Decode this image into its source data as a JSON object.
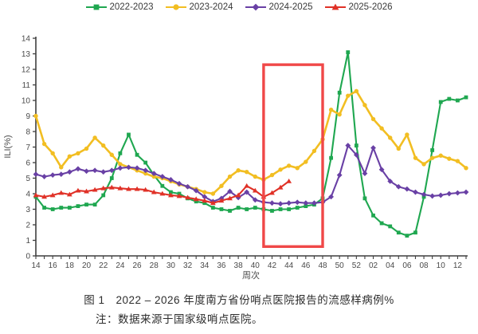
{
  "legend": {
    "items": [
      {
        "label": "2022-2023",
        "marker": "square",
        "color": "#1FA750"
      },
      {
        "label": "2023-2024",
        "marker": "circle",
        "color": "#F2BE22"
      },
      {
        "label": "2024-2025",
        "marker": "diamond",
        "color": "#6940A5"
      },
      {
        "label": "2025-2026",
        "marker": "triangle",
        "color": "#E03127"
      }
    ]
  },
  "chart_data": {
    "type": "line",
    "title": "",
    "xlabel": "周次",
    "ylabel": "ILI(%)",
    "ylim": [
      0,
      14
    ],
    "y_ticks": [
      0,
      1,
      2,
      3,
      4,
      5,
      6,
      7,
      8,
      9,
      10,
      11,
      12,
      13,
      14
    ],
    "x": [
      "14",
      "15",
      "16",
      "17",
      "18",
      "19",
      "20",
      "21",
      "22",
      "23",
      "24",
      "25",
      "26",
      "27",
      "28",
      "29",
      "30",
      "31",
      "32",
      "33",
      "34",
      "35",
      "36",
      "37",
      "38",
      "39",
      "40",
      "41",
      "42",
      "43",
      "44",
      "45",
      "46",
      "47",
      "48",
      "49",
      "50",
      "51",
      "52",
      "01",
      "02",
      "03",
      "04",
      "05",
      "06",
      "07",
      "08",
      "09",
      "10",
      "11",
      "12",
      "13"
    ],
    "x_label_every": 2,
    "grid": false,
    "legend_position": "top",
    "series": [
      {
        "name": "2022-2023",
        "color": "#1FA750",
        "marker": "square",
        "values": [
          3.8,
          3.1,
          3.0,
          3.1,
          3.1,
          3.2,
          3.3,
          3.3,
          3.9,
          5.0,
          6.6,
          7.8,
          6.5,
          6.0,
          5.2,
          4.5,
          4.1,
          4.0,
          3.7,
          3.5,
          3.4,
          3.1,
          3.0,
          2.9,
          3.1,
          3.0,
          3.1,
          3.0,
          2.9,
          3.0,
          3.0,
          3.1,
          3.2,
          3.3,
          3.7,
          6.3,
          10.5,
          13.1,
          7.1,
          3.7,
          2.6,
          2.1,
          1.9,
          1.5,
          1.3,
          1.5,
          3.8,
          6.8,
          9.9,
          10.1,
          10.0,
          10.2
        ]
      },
      {
        "name": "2023-2024",
        "color": "#F2BE22",
        "marker": "circle",
        "values": [
          9.0,
          7.2,
          6.6,
          5.7,
          6.4,
          6.6,
          6.9,
          7.6,
          7.1,
          6.5,
          5.9,
          5.7,
          5.5,
          5.3,
          5.1,
          5.0,
          4.8,
          4.6,
          4.45,
          4.3,
          4.1,
          4.0,
          4.5,
          5.1,
          5.5,
          5.4,
          5.1,
          4.9,
          5.2,
          5.55,
          5.8,
          5.65,
          6.05,
          6.75,
          7.5,
          9.4,
          9.1,
          10.3,
          10.6,
          9.7,
          8.8,
          8.2,
          7.6,
          6.9,
          7.8,
          6.3,
          5.9,
          6.3,
          6.45,
          6.25,
          6.1,
          5.65
        ]
      },
      {
        "name": "2024-2025",
        "color": "#6940A5",
        "marker": "diamond",
        "values": [
          5.25,
          5.1,
          5.2,
          5.25,
          5.4,
          5.6,
          5.45,
          5.5,
          5.4,
          5.5,
          5.65,
          5.7,
          5.65,
          5.5,
          5.3,
          5.1,
          4.9,
          4.65,
          4.45,
          4.2,
          3.8,
          3.5,
          3.7,
          4.15,
          3.75,
          4.1,
          3.6,
          3.45,
          3.4,
          3.35,
          3.4,
          3.45,
          3.4,
          3.4,
          3.45,
          3.8,
          5.2,
          7.1,
          6.5,
          5.3,
          6.95,
          5.55,
          4.8,
          4.45,
          4.3,
          4.1,
          3.95,
          3.85,
          3.9,
          4.0,
          4.05,
          4.1
        ]
      },
      {
        "name": "2025-2026",
        "color": "#E03127",
        "marker": "triangle",
        "values": [
          3.9,
          3.8,
          3.9,
          4.05,
          3.95,
          4.2,
          4.15,
          4.25,
          4.35,
          4.4,
          4.35,
          4.3,
          4.3,
          4.25,
          4.1,
          4.0,
          3.9,
          3.85,
          3.75,
          3.65,
          3.55,
          3.4,
          3.55,
          3.7,
          3.9,
          4.5,
          4.2,
          3.8,
          4.05,
          4.4,
          4.8
        ]
      }
    ],
    "highlight_box": {
      "from_week": "41",
      "to_week": "48",
      "y_from": 0.6,
      "y_to": 12.3,
      "color": "#F04848"
    }
  },
  "caption": {
    "line1": "图 1　2022 – 2026 年度南方省份哨点医院报告的流感样病例%",
    "line2": "注：数据来源于国家级哨点医院。"
  }
}
